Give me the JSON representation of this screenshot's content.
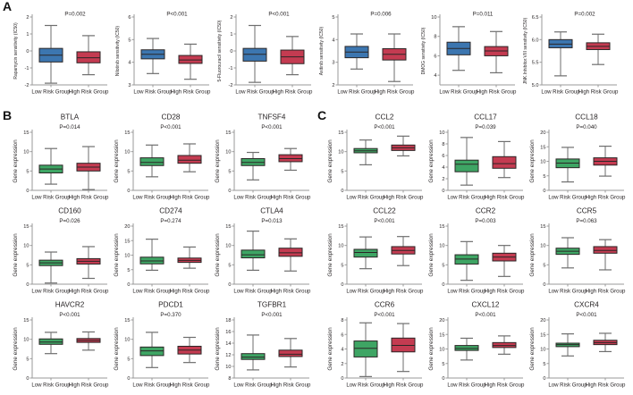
{
  "figure": {
    "panel_labels": {
      "a": "A",
      "b": "B",
      "c": "C"
    },
    "group_labels": [
      "Low Risk Group",
      "High Risk Group"
    ],
    "colors": {
      "low_risk_drug": "#3c76b0",
      "low_risk_gene": "#3ea564",
      "high_risk": "#c43b51",
      "box_border": "#2b2626",
      "whisker": "#6e6e6e",
      "axis": "#9a9a9a",
      "text": "#231f20"
    }
  },
  "chart_data": [
    {
      "panel": "A",
      "type": "boxplot",
      "colors": [
        "#3c76b0",
        "#c43b51"
      ],
      "categories": [
        "Low Risk Group",
        "High Risk Group"
      ],
      "plots": [
        {
          "title": "",
          "p": "P=0.002",
          "ylabel": "Rapamycin sensitivity (IC50)",
          "ylim": [
            -2,
            2
          ],
          "yticks": [
            "-2",
            "-1",
            "0",
            "1",
            "2"
          ],
          "low": [
            -1.9,
            -0.65,
            -0.25,
            0.15,
            1.5
          ],
          "high": [
            -1.4,
            -0.7,
            -0.4,
            -0.05,
            0.9
          ]
        },
        {
          "title": "",
          "p": "P<0.001",
          "ylabel": "Nilotinib sensitivity (IC50)",
          "ylim": [
            3,
            6
          ],
          "yticks": [
            "3",
            "4",
            "5",
            "6"
          ],
          "low": [
            3.5,
            4.15,
            4.35,
            4.55,
            5.05
          ],
          "high": [
            3.25,
            3.95,
            4.1,
            4.3,
            4.8
          ]
        },
        {
          "title": "",
          "p": "P<0.001",
          "ylabel": "5-Fluorouracil sensitivity (IC50)",
          "ylim": [
            -2,
            2
          ],
          "yticks": [
            "-2",
            "-1",
            "0",
            "1",
            "2"
          ],
          "low": [
            -1.85,
            -0.6,
            -0.2,
            0.15,
            1.5
          ],
          "high": [
            -1.4,
            -0.75,
            -0.35,
            0.05,
            0.85
          ]
        },
        {
          "title": "",
          "p": "P=0.006",
          "ylabel": "Axitinib sensitivity (IC50)",
          "ylim": [
            2,
            5
          ],
          "yticks": [
            "2",
            "3",
            "4",
            "5"
          ],
          "low": [
            2.7,
            3.2,
            3.45,
            3.7,
            4.25
          ],
          "high": [
            2.15,
            3.1,
            3.35,
            3.6,
            4.25
          ]
        },
        {
          "title": "",
          "p": "P=0.011",
          "ylabel": "DMOG senstivity (IC50)",
          "ylim": [
            3,
            10
          ],
          "yticks": [
            "4",
            "6",
            "8",
            "10"
          ],
          "low": [
            4.5,
            6.1,
            6.75,
            7.4,
            9.0
          ],
          "high": [
            4.25,
            6.0,
            6.5,
            6.95,
            8.5
          ]
        },
        {
          "title": "",
          "p": "P=0.002",
          "ylabel": "JNK.Inhibitor.VIII senstivity (IC50)",
          "ylim": [
            5,
            6.5
          ],
          "yticks": [
            "5.0",
            "5.5",
            "6.0",
            "6.5"
          ],
          "low": [
            5.2,
            5.82,
            5.9,
            6.0,
            6.17
          ],
          "high": [
            5.45,
            5.78,
            5.85,
            5.93,
            6.12
          ]
        }
      ]
    },
    {
      "panel": "B",
      "type": "boxplot",
      "colors": [
        "#3ea564",
        "#c43b51"
      ],
      "categories": [
        "Low Risk Group",
        "High Risk Group"
      ],
      "plots": [
        {
          "title": "BTLA",
          "p": "P=0.014",
          "ylabel": "Gene expression",
          "ylim": [
            0,
            15
          ],
          "yticks": [
            "0",
            "5",
            "10",
            "15"
          ],
          "low": [
            1.6,
            4.5,
            5.5,
            6.5,
            10.8
          ],
          "high": [
            0.2,
            5.0,
            6.0,
            7.0,
            11.3
          ]
        },
        {
          "title": "CD28",
          "p": "P<0.001",
          "ylabel": "Gene expression",
          "ylim": [
            0,
            15
          ],
          "yticks": [
            "0",
            "5",
            "10",
            "15"
          ],
          "low": [
            3.5,
            6.4,
            7.2,
            8.4,
            11.7
          ],
          "high": [
            4.8,
            7.0,
            7.8,
            9.0,
            12.0
          ]
        },
        {
          "title": "TNFSF4",
          "p": "P<0.001",
          "ylabel": "Gene expression",
          "ylim": [
            0,
            15
          ],
          "yticks": [
            "0",
            "5",
            "10",
            "15"
          ],
          "low": [
            2.7,
            6.4,
            7.2,
            8.2,
            9.8
          ],
          "high": [
            5.2,
            7.4,
            8.2,
            9.2,
            10.8
          ]
        },
        {
          "title": "CD160",
          "p": "P=0.026",
          "ylabel": "Gene expression",
          "ylim": [
            0,
            15
          ],
          "yticks": [
            "0",
            "5",
            "10",
            "15"
          ],
          "low": [
            0.3,
            4.8,
            5.5,
            6.2,
            8.3
          ],
          "high": [
            1.5,
            5.2,
            5.9,
            6.6,
            9.7
          ]
        },
        {
          "title": "CD274",
          "p": "P=0.274",
          "ylabel": "Gene expression",
          "ylim": [
            0,
            20
          ],
          "yticks": [
            "0",
            "5",
            "10",
            "15",
            "20"
          ],
          "low": [
            4.8,
            7.0,
            8.0,
            9.3,
            15.5
          ],
          "high": [
            5.5,
            7.5,
            8.2,
            9.0,
            12.8
          ]
        },
        {
          "title": "CTLA4",
          "p": "P=0.013",
          "ylabel": "Gene expression",
          "ylim": [
            0,
            15
          ],
          "yticks": [
            "0",
            "5",
            "10",
            "15"
          ],
          "low": [
            3.6,
            6.8,
            7.6,
            8.8,
            13.7
          ],
          "high": [
            3.4,
            7.2,
            8.1,
            9.3,
            11.7
          ]
        },
        {
          "title": "HAVCR2",
          "p": "P<0.001",
          "ylabel": "Gene expression",
          "ylim": [
            0,
            15
          ],
          "yticks": [
            "0",
            "5",
            "10",
            "15"
          ],
          "low": [
            6.3,
            8.7,
            9.3,
            10.1,
            11.8
          ],
          "high": [
            7.2,
            9.2,
            9.7,
            10.2,
            11.9
          ]
        },
        {
          "title": "PDCD1",
          "p": "P=0.370",
          "ylabel": "Gene expression",
          "ylim": [
            0,
            15
          ],
          "yticks": [
            "0",
            "5",
            "10",
            "15"
          ],
          "low": [
            2.7,
            5.8,
            7.0,
            8.0,
            11.8
          ],
          "high": [
            4.0,
            6.2,
            7.2,
            8.2,
            10.5
          ]
        },
        {
          "title": "TGFBR1",
          "p": "P<0.001",
          "ylabel": "Gene expression",
          "ylim": [
            8,
            18
          ],
          "yticks": [
            "8",
            "10",
            "12",
            "14",
            "16",
            "18"
          ],
          "low": [
            9.4,
            11.2,
            11.6,
            12.2,
            15.4
          ],
          "high": [
            9.9,
            11.7,
            12.1,
            12.8,
            14.8
          ]
        }
      ]
    },
    {
      "panel": "C",
      "type": "boxplot",
      "colors": [
        "#3ea564",
        "#c43b51"
      ],
      "categories": [
        "Low Risk Group",
        "High Risk Group"
      ],
      "plots": [
        {
          "title": "CCL2",
          "p": "P<0.001",
          "ylabel": "Gene expression",
          "ylim": [
            0,
            15
          ],
          "yticks": [
            "0",
            "5",
            "10",
            "15"
          ],
          "low": [
            6.6,
            9.7,
            10.2,
            10.8,
            13.0
          ],
          "high": [
            8.9,
            10.3,
            11.0,
            11.7,
            14.0
          ]
        },
        {
          "title": "CCL17",
          "p": "P=0.039",
          "ylabel": "Gene expression",
          "ylim": [
            0,
            10
          ],
          "yticks": [
            "0",
            "2",
            "4",
            "6",
            "8",
            "10"
          ],
          "low": [
            0.9,
            3.2,
            4.5,
            5.2,
            9.1
          ],
          "high": [
            2.2,
            3.8,
            4.6,
            5.8,
            8.4
          ]
        },
        {
          "title": "CCL18",
          "p": "P=0.040",
          "ylabel": "Gene expression",
          "ylim": [
            0,
            20
          ],
          "yticks": [
            "0",
            "5",
            "10",
            "15",
            "20"
          ],
          "low": [
            2.9,
            7.8,
            9.4,
            10.8,
            14.8
          ],
          "high": [
            4.9,
            8.7,
            10.0,
            11.2,
            15.2
          ]
        },
        {
          "title": "CCL22",
          "p": "P<0.001",
          "ylabel": "Gene expression",
          "ylim": [
            0,
            15
          ],
          "yticks": [
            "0",
            "5",
            "10",
            "15"
          ],
          "low": [
            4.0,
            7.0,
            8.2,
            9.0,
            12.2
          ],
          "high": [
            4.8,
            7.8,
            8.7,
            9.7,
            12.3
          ]
        },
        {
          "title": "CCR2",
          "p": "P=0.003",
          "ylabel": "Gene expression",
          "ylim": [
            0,
            15
          ],
          "yticks": [
            "0",
            "5",
            "10",
            "15"
          ],
          "low": [
            1.0,
            5.2,
            6.5,
            7.6,
            11.0
          ],
          "high": [
            2.0,
            6.0,
            7.0,
            8.0,
            10.0
          ]
        },
        {
          "title": "CCR5",
          "p": "P=0.063",
          "ylabel": "Gene expression",
          "ylim": [
            0,
            15
          ],
          "yticks": [
            "0",
            "5",
            "10",
            "15"
          ],
          "low": [
            4.2,
            7.7,
            8.5,
            9.3,
            12.0
          ],
          "high": [
            3.7,
            8.0,
            8.7,
            9.7,
            11.5
          ]
        },
        {
          "title": "CCR6",
          "p": "P<0.001",
          "ylabel": "Gene expression",
          "ylim": [
            0,
            8
          ],
          "yticks": [
            "0",
            "2",
            "4",
            "6",
            "8"
          ],
          "low": [
            0.2,
            2.9,
            4.1,
            5.1,
            7.6
          ],
          "high": [
            0.9,
            3.6,
            4.5,
            5.5,
            7.5
          ]
        },
        {
          "title": "CXCL12",
          "p": "P<0.001",
          "ylabel": "Gene expression",
          "ylim": [
            0,
            20
          ],
          "yticks": [
            "0",
            "5",
            "10",
            "15",
            "20"
          ],
          "low": [
            6.2,
            9.5,
            10.2,
            11.2,
            13.7
          ],
          "high": [
            8.2,
            10.5,
            11.2,
            12.2,
            14.5
          ]
        },
        {
          "title": "CXCR4",
          "p": "P<0.001",
          "ylabel": "Gene expression",
          "ylim": [
            0,
            20
          ],
          "yticks": [
            "0",
            "5",
            "10",
            "15",
            "20"
          ],
          "low": [
            7.6,
            10.8,
            11.5,
            12.0,
            15.2
          ],
          "high": [
            9.1,
            11.5,
            12.2,
            13.0,
            15.4
          ]
        }
      ]
    }
  ]
}
